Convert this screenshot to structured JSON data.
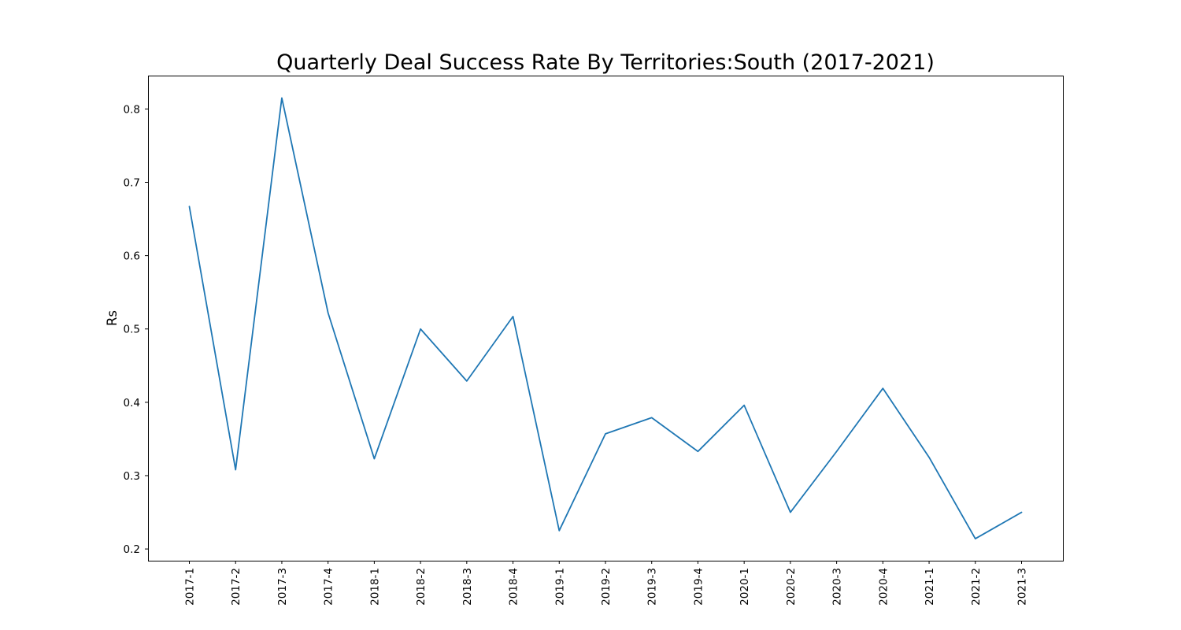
{
  "chart_data": {
    "type": "line",
    "title": "Quarterly Deal Success Rate By Territories:South (2017-2021)",
    "xlabel": "",
    "ylabel": "Rs",
    "categories": [
      "2017-1",
      "2017-2",
      "2017-3",
      "2017-4",
      "2018-1",
      "2018-2",
      "2018-3",
      "2018-4",
      "2019-1",
      "2019-2",
      "2019-3",
      "2019-4",
      "2020-1",
      "2020-2",
      "2020-3",
      "2020-4",
      "2021-1",
      "2021-2",
      "2021-3"
    ],
    "series": [
      {
        "values": [
          0.667,
          0.308,
          0.815,
          0.522,
          0.323,
          0.5,
          0.429,
          0.517,
          0.225,
          0.357,
          0.379,
          0.333,
          0.396,
          0.25,
          0.333,
          0.419,
          0.325,
          0.214,
          0.25
        ],
        "color": "#1f77b4"
      }
    ],
    "yticks": [
      0.2,
      0.3,
      0.4,
      0.5,
      0.6,
      0.7,
      0.8
    ],
    "ytick_labels": [
      "0.2",
      "0.3",
      "0.4",
      "0.5",
      "0.6",
      "0.7",
      "0.8"
    ],
    "ylim": [
      0.184,
      0.8455
    ],
    "grid": false,
    "legend": "none"
  }
}
